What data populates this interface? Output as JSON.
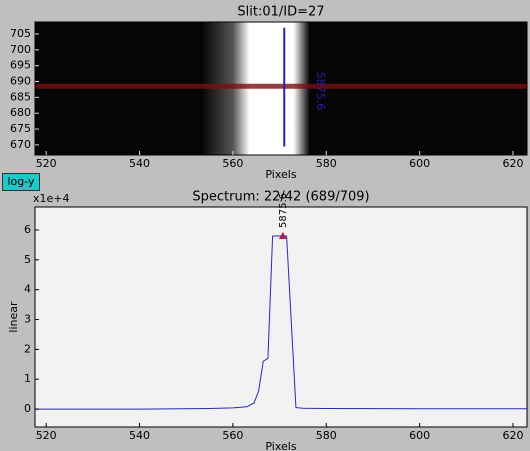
{
  "toolbar": {
    "button": "log-y"
  },
  "chart_data": [
    {
      "type": "image",
      "title": "Slit:01/ID=27",
      "xlabel": "Pixels",
      "xlim": [
        517.6,
        623
      ],
      "ylim": [
        666.8,
        708.8
      ],
      "xticks": [
        520,
        540,
        560,
        580,
        600,
        620
      ],
      "yticks": [
        670,
        675,
        680,
        685,
        690,
        695,
        700,
        705
      ],
      "highlight_row": {
        "y": 688.5,
        "color": "#7a1010"
      },
      "trace": {
        "x": 571,
        "y": [
          669.5,
          707
        ],
        "color": "#2222aa"
      },
      "annotation": {
        "text": "5875.6",
        "x": 578.7,
        "y": 687,
        "color": "#2222aa"
      }
    },
    {
      "type": "line",
      "title": "Spectrum: 22/42 (689/709)",
      "xlabel": "Pixels",
      "ylabel": "linear",
      "y_offset_label": "x1e+4",
      "xlim": [
        517.6,
        623
      ],
      "ylim": [
        -0.6,
        6.77
      ],
      "xticks": [
        520,
        540,
        560,
        580,
        600,
        620
      ],
      "yticks": [
        0,
        1,
        2,
        3,
        4,
        5,
        6
      ],
      "x": [
        517.6,
        540,
        555,
        560,
        563,
        564.5,
        565.5,
        566.5,
        567.5,
        568.5,
        571.5,
        573.5,
        575,
        580,
        600,
        623
      ],
      "values": [
        0,
        0,
        0.02,
        0.04,
        0.08,
        0.2,
        0.6,
        1.6,
        1.7,
        5.8,
        5.8,
        0.05,
        0.03,
        0.02,
        0.01,
        0.01
      ],
      "color": "#2b2bb0",
      "peak": {
        "x": 570.7,
        "y": 5.8,
        "label": "5875.6",
        "color": "#aa2244"
      }
    }
  ]
}
